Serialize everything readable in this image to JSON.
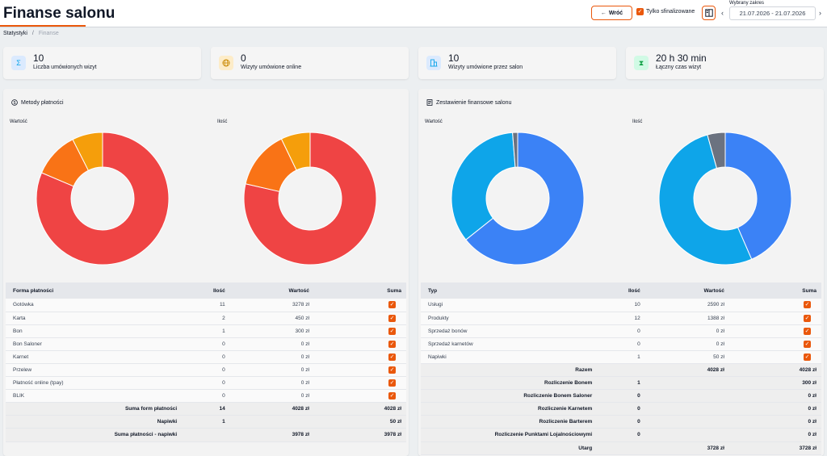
{
  "header": {
    "title": "Finanse salonu",
    "back_label": "Wróć",
    "only_finalized_label": "Tylko sfinalizowane",
    "range_label": "Wybrany zakres",
    "range_value": "21.07.2026 - 21.07.2026",
    "prev_arrow": "‹",
    "next_arrow": "›"
  },
  "breadcrumb": {
    "root": "Statystyki",
    "separator": "/",
    "current": "Finanse"
  },
  "stats": [
    {
      "value": "10",
      "label": "Liczba umówionych wizyt",
      "icon": "sigma-icon",
      "color": "#0ea5e9"
    },
    {
      "value": "0",
      "label": "Wizyty umówione online",
      "icon": "globe-icon",
      "color": "#ca8a04"
    },
    {
      "value": "10",
      "label": "Wizyty umówione przez salon",
      "icon": "building-icon",
      "color": "#0ea5e9"
    },
    {
      "value": "20 h 30 min",
      "label": "Łączny czas wizyt",
      "icon": "hourglass-icon",
      "color": "#16a34a"
    }
  ],
  "payments": {
    "title": "Metody płatności",
    "chart_value_label": "Wartość",
    "chart_count_label": "Ilość",
    "columns": [
      "Forma płatności",
      "Ilość",
      "Wartość",
      "Suma"
    ],
    "rows": [
      {
        "name": "Gotówka",
        "count": "11",
        "value": "3278 zł"
      },
      {
        "name": "Karta",
        "count": "2",
        "value": "450 zł"
      },
      {
        "name": "Bon",
        "count": "1",
        "value": "300 zł"
      },
      {
        "name": "Bon Saloner",
        "count": "0",
        "value": "0 zł"
      },
      {
        "name": "Karnet",
        "count": "0",
        "value": "0 zł"
      },
      {
        "name": "Przelew",
        "count": "0",
        "value": "0 zł"
      },
      {
        "name": "Płatność online (tpay)",
        "count": "0",
        "value": "0 zł"
      },
      {
        "name": "BLIK",
        "count": "0",
        "value": "0 zł"
      }
    ],
    "summary": [
      {
        "label": "Suma form płatności",
        "count": "14",
        "value": "4028 zł",
        "sum": "4028 zł"
      },
      {
        "label": "Napiwki",
        "count": "1",
        "value": "",
        "sum": "50 zł"
      },
      {
        "label": "Suma płatności - napiwki",
        "count": "",
        "value": "3978 zł",
        "sum": "3978 zł"
      }
    ]
  },
  "finance": {
    "title": "Zestawienie finansowe salonu",
    "chart_value_label": "Wartość",
    "chart_count_label": "Ilość",
    "columns": [
      "Typ",
      "Ilość",
      "Wartość",
      "Suma"
    ],
    "rows": [
      {
        "name": "Usługi",
        "count": "10",
        "value": "2590 zł"
      },
      {
        "name": "Produkty",
        "count": "12",
        "value": "1388 zł"
      },
      {
        "name": "Sprzedaż bonów",
        "count": "0",
        "value": "0 zł"
      },
      {
        "name": "Sprzedaż karnetów",
        "count": "0",
        "value": "0 zł"
      },
      {
        "name": "Napiwki",
        "count": "1",
        "value": "50 zł"
      }
    ],
    "summary": [
      {
        "label": "Razem",
        "count": "",
        "value": "4028 zł",
        "sum": "4028 zł"
      },
      {
        "label": "Rozliczenie Bonem",
        "count": "1",
        "value": "",
        "sum": "300 zł"
      },
      {
        "label": "Rozliczenie Bonem Saloner",
        "count": "0",
        "value": "",
        "sum": "0 zł"
      },
      {
        "label": "Rozliczenie Karnetem",
        "count": "0",
        "value": "",
        "sum": "0 zł"
      },
      {
        "label": "Rozliczenie Barterem",
        "count": "0",
        "value": "",
        "sum": "0 zł"
      },
      {
        "label": "Rozliczenie Punktami Lojalnościowymi",
        "count": "0",
        "value": "",
        "sum": "0 zł"
      },
      {
        "label": "Utarg",
        "count": "",
        "value": "3728 zł",
        "sum": "3728 zł"
      }
    ]
  },
  "chart_data": [
    {
      "type": "pie",
      "title": "Wartość",
      "categories": [
        "Gotówka",
        "Karta",
        "Bon"
      ],
      "values": [
        3278,
        450,
        300
      ],
      "colors": [
        "#ef4444",
        "#f97316",
        "#f59e0b"
      ]
    },
    {
      "type": "pie",
      "title": "Ilość",
      "categories": [
        "Gotówka",
        "Karta",
        "Bon"
      ],
      "values": [
        11,
        2,
        1
      ],
      "colors": [
        "#ef4444",
        "#f97316",
        "#f59e0b"
      ]
    },
    {
      "type": "pie",
      "title": "Wartość",
      "categories": [
        "Usługi",
        "Produkty",
        "Napiwki"
      ],
      "values": [
        2590,
        1388,
        50
      ],
      "colors": [
        "#3b82f6",
        "#0ea5e9",
        "#6b7280"
      ]
    },
    {
      "type": "pie",
      "title": "Ilość",
      "categories": [
        "Usługi",
        "Produkty",
        "Napiwki"
      ],
      "values": [
        10,
        12,
        1
      ],
      "colors": [
        "#3b82f6",
        "#0ea5e9",
        "#6b7280"
      ]
    }
  ],
  "colors": {
    "accent": "#ea580c"
  }
}
